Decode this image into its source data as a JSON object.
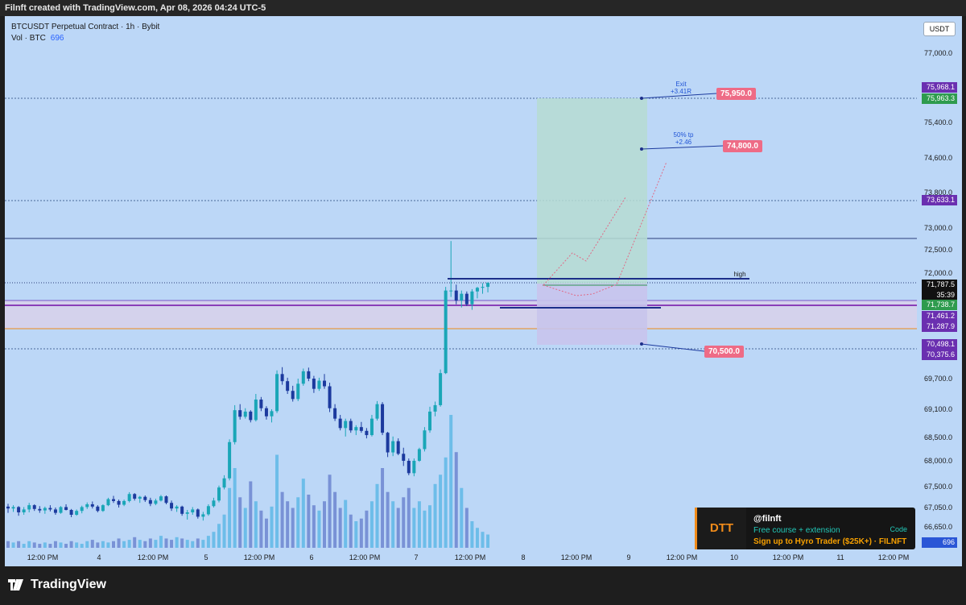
{
  "header": {
    "title": "Filnft created with TradingView.com, Apr 08, 2026 04:24 UTC-5"
  },
  "legend": {
    "symbol": "BTCUSDT Perpetual Contract · 1h · Bybit",
    "vol_label": "Vol · BTC",
    "vol_value": "696"
  },
  "currency_button": "USDT",
  "chart_data": {
    "type": "candlestick",
    "symbol": "BTCUSDT Perpetual Contract",
    "interval": "1h",
    "exchange": "Bybit",
    "y_axis_labels": [
      "77,000.0",
      "75,400.0",
      "74,600.0",
      "73,800.0",
      "73,000.0",
      "72,500.0",
      "72,000.0",
      "69,700.0",
      "69,100.0",
      "68,500.0",
      "68,000.0",
      "67,500.0",
      "67,050.0",
      "66,650.0"
    ],
    "x_axis_labels": [
      "12:00 PM",
      "4",
      "12:00 PM",
      "5",
      "12:00 PM",
      "6",
      "12:00 PM",
      "7",
      "12:00 PM",
      "8",
      "12:00 PM",
      "9",
      "12:00 PM",
      "10",
      "12:00 PM",
      "11",
      "12:00 PM"
    ],
    "price_tags": [
      {
        "value": "75,968.1",
        "color": "#6a2fb0"
      },
      {
        "value": "75,963.3",
        "color": "#2e9b4e"
      },
      {
        "value": "73,633.1",
        "color": "#6a2fb0"
      },
      {
        "value": "71,787.5",
        "sub": "35:39",
        "color": "#111111"
      },
      {
        "value": "71,738.7",
        "color": "#2e9b4e"
      },
      {
        "value": "71,461.2",
        "color": "#6a2fb0"
      },
      {
        "value": "71,287.9",
        "color": "#6a2fb0"
      },
      {
        "value": "70,498.1",
        "color": "#6a2fb0"
      },
      {
        "value": "70,375.6",
        "color": "#6a2fb0"
      },
      {
        "value": "696",
        "color": "#2a56d6"
      }
    ],
    "annotations": [
      {
        "box": "75,950.0",
        "note_line1": "Exit",
        "note_line2": "+3.41R"
      },
      {
        "box": "74,800.0",
        "note_line1": "50% tp",
        "note_line2": "+2.46"
      },
      {
        "box": "70,500.0"
      }
    ],
    "high_label": "high",
    "candles": [
      [
        67070,
        67130,
        66940,
        67030
      ],
      [
        67030,
        67100,
        66960,
        67060
      ],
      [
        67060,
        67080,
        66880,
        66950
      ],
      [
        66950,
        67060,
        66900,
        67010
      ],
      [
        67010,
        67150,
        66950,
        67100
      ],
      [
        67100,
        67120,
        66980,
        67020
      ],
      [
        67020,
        67080,
        66940,
        66990
      ],
      [
        66990,
        67070,
        66920,
        67040
      ],
      [
        67040,
        67100,
        66970,
        67010
      ],
      [
        67010,
        67050,
        66900,
        66940
      ],
      [
        66940,
        67080,
        66920,
        67060
      ],
      [
        67060,
        67120,
        66990,
        67000
      ],
      [
        67000,
        67020,
        66850,
        66900
      ],
      [
        66900,
        67010,
        66880,
        66980
      ],
      [
        66980,
        67090,
        66930,
        67060
      ],
      [
        67060,
        67160,
        67020,
        67120
      ],
      [
        67120,
        67180,
        67030,
        67070
      ],
      [
        67070,
        67100,
        66950,
        66980
      ],
      [
        66980,
        67120,
        66960,
        67100
      ],
      [
        67100,
        67260,
        67080,
        67230
      ],
      [
        67230,
        67300,
        67150,
        67190
      ],
      [
        67190,
        67220,
        67050,
        67110
      ],
      [
        67110,
        67220,
        67080,
        67190
      ],
      [
        67190,
        67380,
        67160,
        67340
      ],
      [
        67340,
        67360,
        67200,
        67240
      ],
      [
        67240,
        67300,
        67150,
        67280
      ],
      [
        67280,
        67310,
        67170,
        67210
      ],
      [
        67210,
        67260,
        67080,
        67130
      ],
      [
        67130,
        67240,
        67100,
        67200
      ],
      [
        67200,
        67320,
        67180,
        67290
      ],
      [
        67290,
        67310,
        67120,
        67150
      ],
      [
        67150,
        67200,
        66980,
        67030
      ],
      [
        67030,
        67100,
        66960,
        67070
      ],
      [
        67070,
        67090,
        66880,
        66920
      ],
      [
        66920,
        67000,
        66800,
        66950
      ],
      [
        66950,
        67060,
        66900,
        67010
      ],
      [
        67010,
        67030,
        66820,
        66860
      ],
      [
        66860,
        66960,
        66780,
        66910
      ],
      [
        66910,
        67120,
        66880,
        67080
      ],
      [
        67080,
        67260,
        67050,
        67200
      ],
      [
        67200,
        67520,
        67160,
        67480
      ],
      [
        67480,
        67720,
        67440,
        67660
      ],
      [
        67660,
        68460,
        67620,
        68400
      ],
      [
        68400,
        69180,
        68350,
        69080
      ],
      [
        69080,
        69200,
        68880,
        68940
      ],
      [
        68940,
        69120,
        68900,
        69050
      ],
      [
        69050,
        69080,
        68820,
        68870
      ],
      [
        68870,
        69400,
        68840,
        69290
      ],
      [
        69290,
        69340,
        69060,
        69120
      ],
      [
        69120,
        69160,
        68880,
        68950
      ],
      [
        68950,
        69100,
        68820,
        69060
      ],
      [
        69060,
        69880,
        69020,
        69800
      ],
      [
        69800,
        69950,
        69580,
        69650
      ],
      [
        69650,
        69720,
        69400,
        69460
      ],
      [
        69460,
        69560,
        69250,
        69300
      ],
      [
        69300,
        69700,
        69260,
        69600
      ],
      [
        69600,
        69920,
        69560,
        69860
      ],
      [
        69860,
        69940,
        69650,
        69700
      ],
      [
        69700,
        69760,
        69420,
        69500
      ],
      [
        69500,
        69720,
        69460,
        69660
      ],
      [
        69660,
        69800,
        69500,
        69550
      ],
      [
        69550,
        69620,
        69040,
        69120
      ],
      [
        69120,
        69200,
        68850,
        68900
      ],
      [
        68900,
        68980,
        68650,
        68700
      ],
      [
        68700,
        68900,
        68520,
        68850
      ],
      [
        68850,
        68900,
        68600,
        68650
      ],
      [
        68650,
        68760,
        68550,
        68720
      ],
      [
        68720,
        68830,
        68600,
        68640
      ],
      [
        68640,
        68700,
        68480,
        68550
      ],
      [
        68550,
        68980,
        68520,
        68900
      ],
      [
        68900,
        69260,
        68860,
        69200
      ],
      [
        69200,
        69240,
        68550,
        68600
      ],
      [
        68600,
        68620,
        68080,
        68180
      ],
      [
        68180,
        68520,
        68100,
        68420
      ],
      [
        68420,
        68480,
        68120,
        68150
      ],
      [
        68150,
        68280,
        67900,
        68000
      ],
      [
        68000,
        68050,
        67720,
        67760
      ],
      [
        67760,
        68050,
        67700,
        68000
      ],
      [
        68000,
        68280,
        67980,
        68250
      ],
      [
        68250,
        68720,
        68200,
        68650
      ],
      [
        68650,
        69150,
        68600,
        69050
      ],
      [
        69050,
        69250,
        68950,
        69180
      ],
      [
        69180,
        69900,
        69150,
        69820
      ],
      [
        69820,
        71700,
        69800,
        71620
      ],
      [
        71620,
        72700,
        71480,
        71620
      ],
      [
        71620,
        71750,
        71320,
        71400
      ],
      [
        71400,
        71620,
        71250,
        71550
      ],
      [
        71550,
        71600,
        71280,
        71320
      ],
      [
        71320,
        71650,
        71200,
        71600
      ],
      [
        71600,
        71700,
        71450,
        71680
      ],
      [
        71680,
        71780,
        71550,
        71700
      ],
      [
        71700,
        71800,
        71580,
        71787
      ]
    ],
    "volumes": [
      0.05,
      0.04,
      0.05,
      0.03,
      0.05,
      0.04,
      0.03,
      0.04,
      0.03,
      0.05,
      0.04,
      0.03,
      0.05,
      0.04,
      0.03,
      0.05,
      0.06,
      0.04,
      0.05,
      0.04,
      0.05,
      0.07,
      0.05,
      0.06,
      0.08,
      0.06,
      0.05,
      0.07,
      0.06,
      0.09,
      0.07,
      0.06,
      0.08,
      0.07,
      0.06,
      0.05,
      0.07,
      0.06,
      0.09,
      0.12,
      0.18,
      0.25,
      0.45,
      0.6,
      0.38,
      0.3,
      0.5,
      0.35,
      0.28,
      0.22,
      0.31,
      0.7,
      0.42,
      0.35,
      0.3,
      0.38,
      0.52,
      0.4,
      0.32,
      0.28,
      0.35,
      0.55,
      0.42,
      0.3,
      0.36,
      0.25,
      0.2,
      0.22,
      0.28,
      0.35,
      0.48,
      0.6,
      0.42,
      0.35,
      0.3,
      0.38,
      0.45,
      0.3,
      0.35,
      0.28,
      0.32,
      0.48,
      0.55,
      0.68,
      1.0,
      0.72,
      0.45,
      0.3,
      0.2,
      0.15,
      0.12,
      0.1
    ]
  },
  "promo": {
    "badge": "DTT",
    "handle": "@filnft",
    "line1": "Free course + extension",
    "line2": "Sign up to Hyro Trader ($25K+) · FILNFT",
    "code": "Code"
  },
  "footer": {
    "brand": "TradingView"
  }
}
